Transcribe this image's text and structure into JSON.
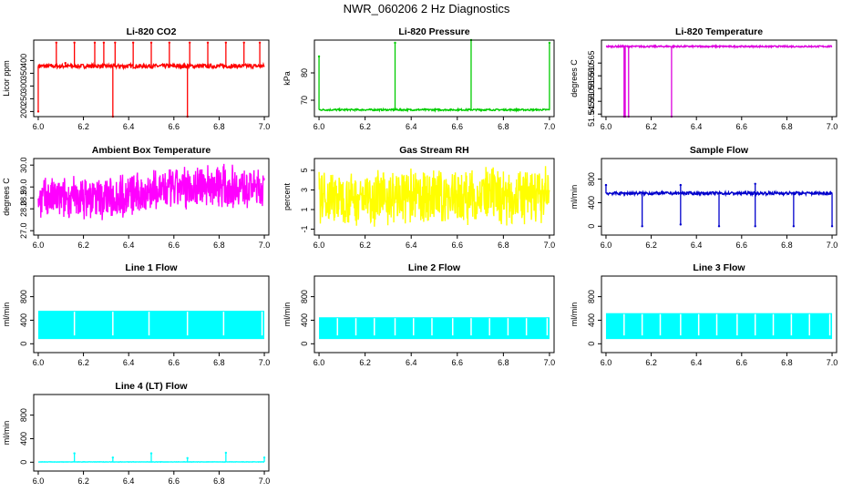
{
  "title": "NWR_060206  2 Hz Diagnostics",
  "chart_data": [
    {
      "id": "co2",
      "type": "line",
      "title": "Li-820 CO2",
      "ylabel": "Licor ppm",
      "color": "#ff0000",
      "xlim": [
        5.98,
        7.02
      ],
      "ylim": [
        180,
        480
      ],
      "xticks": [
        6.0,
        6.2,
        6.4,
        6.6,
        6.8,
        7.0
      ],
      "xtick_labels": [
        "6.0",
        "6.2",
        "6.4",
        "6.6",
        "6.8",
        "7.0"
      ],
      "yticks": [
        200,
        250,
        300,
        350,
        400
      ],
      "ytick_labels": [
        "200",
        "250",
        "300",
        "350",
        "400"
      ],
      "baseline": 378,
      "noise": 8,
      "spikes": [
        {
          "x": 6.0,
          "y": 200
        },
        {
          "x": 6.08,
          "y": 470
        },
        {
          "x": 6.12,
          "y": 390
        },
        {
          "x": 6.16,
          "y": 470
        },
        {
          "x": 6.25,
          "y": 470
        },
        {
          "x": 6.29,
          "y": 470
        },
        {
          "x": 6.33,
          "y": 180
        },
        {
          "x": 6.34,
          "y": 470
        },
        {
          "x": 6.42,
          "y": 470
        },
        {
          "x": 6.5,
          "y": 470
        },
        {
          "x": 6.58,
          "y": 470
        },
        {
          "x": 6.66,
          "y": 180
        },
        {
          "x": 6.67,
          "y": 470
        },
        {
          "x": 6.75,
          "y": 470
        },
        {
          "x": 6.83,
          "y": 470
        },
        {
          "x": 6.91,
          "y": 470
        },
        {
          "x": 6.98,
          "y": 470
        }
      ]
    },
    {
      "id": "pressure",
      "type": "line",
      "title": "Li-820 Pressure",
      "ylabel": "kPa",
      "color": "#00cc00",
      "xlim": [
        5.98,
        7.02
      ],
      "ylim": [
        64,
        92
      ],
      "xticks": [
        6.0,
        6.2,
        6.4,
        6.6,
        6.8,
        7.0
      ],
      "xtick_labels": [
        "6.0",
        "6.2",
        "6.4",
        "6.6",
        "6.8",
        "7.0"
      ],
      "yticks": [
        70,
        80
      ],
      "ytick_labels": [
        "70",
        "80"
      ],
      "baseline": 66.5,
      "noise": 0.3,
      "spikes": [
        {
          "x": 6.0,
          "y": 86
        },
        {
          "x": 6.33,
          "y": 91
        },
        {
          "x": 6.66,
          "y": 92
        },
        {
          "x": 7.0,
          "y": 91
        }
      ]
    },
    {
      "id": "temperature",
      "type": "line",
      "title": "Li-820 Temperature",
      "ylabel": "degrees C",
      "color": "#dd00dd",
      "xlim": [
        5.98,
        7.02
      ],
      "ylim": [
        51.544,
        51.574
      ],
      "xticks": [
        6.0,
        6.2,
        6.4,
        6.6,
        6.8,
        7.0
      ],
      "xtick_labels": [
        "6.0",
        "6.2",
        "6.4",
        "6.6",
        "6.8",
        "7.0"
      ],
      "yticks": [
        51.545,
        51.55,
        51.555,
        51.56,
        51.565
      ],
      "ytick_labels": [
        "51.545",
        "51.550",
        "51.555",
        "51.560",
        "51.565"
      ],
      "baseline": 51.5715,
      "noise": 0.0003,
      "spikes": [
        {
          "x": 6.08,
          "y": 51.544
        },
        {
          "x": 6.085,
          "y": 51.544
        },
        {
          "x": 6.1,
          "y": 51.544
        },
        {
          "x": 6.29,
          "y": 51.544
        }
      ]
    },
    {
      "id": "ambient",
      "type": "line",
      "title": "Ambient Box Temperature",
      "ylabel": "degrees C",
      "color": "#ff00ff",
      "xlim": [
        5.98,
        7.02
      ],
      "ylim": [
        26.8,
        30.3
      ],
      "xticks": [
        6.0,
        6.2,
        6.4,
        6.6,
        6.8,
        7.0
      ],
      "xtick_labels": [
        "6.0",
        "6.2",
        "6.4",
        "6.6",
        "6.8",
        "7.0"
      ],
      "yticks": [
        27.0,
        28.0,
        28.5,
        29.0,
        30.0
      ],
      "ytick_labels": [
        "27.0",
        "28.0",
        "28.5",
        "29.0",
        "30.0"
      ],
      "band_low": [
        [
          6.0,
          27.5
        ],
        [
          6.3,
          27.4
        ],
        [
          6.6,
          27.8
        ],
        [
          6.8,
          28.0
        ],
        [
          7.0,
          28.0
        ]
      ],
      "band_high": [
        [
          6.0,
          29.5
        ],
        [
          6.3,
          29.6
        ],
        [
          6.6,
          30.0
        ],
        [
          6.8,
          30.2
        ],
        [
          7.0,
          29.8
        ]
      ]
    },
    {
      "id": "rh",
      "type": "line",
      "title": "Gas Stream RH",
      "ylabel": "percent",
      "color": "#ffff00",
      "xlim": [
        5.98,
        7.02
      ],
      "ylim": [
        -1.6,
        6.2
      ],
      "xticks": [
        6.0,
        6.2,
        6.4,
        6.6,
        6.8,
        7.0
      ],
      "xtick_labels": [
        "6.0",
        "6.2",
        "6.4",
        "6.6",
        "6.8",
        "7.0"
      ],
      "yticks": [
        -1,
        1,
        3,
        5
      ],
      "ytick_labels": [
        "-1",
        "1",
        "3",
        "5"
      ],
      "band_low": [
        [
          6.0,
          -0.8
        ],
        [
          7.0,
          -0.8
        ]
      ],
      "band_high": [
        [
          6.0,
          5.2
        ],
        [
          7.0,
          5.5
        ]
      ]
    },
    {
      "id": "sample",
      "type": "line",
      "title": "Sample Flow",
      "ylabel": "ml/min",
      "color": "#0000cc",
      "xlim": [
        5.98,
        7.02
      ],
      "ylim": [
        -150,
        1150
      ],
      "xticks": [
        6.0,
        6.2,
        6.4,
        6.6,
        6.8,
        7.0
      ],
      "xtick_labels": [
        "6.0",
        "6.2",
        "6.4",
        "6.6",
        "6.8",
        "7.0"
      ],
      "yticks": [
        0,
        400,
        800
      ],
      "ytick_labels": [
        "0",
        "400",
        "800"
      ],
      "baseline": 560,
      "noise": 25,
      "spikes": [
        {
          "x": 6.0,
          "y": 700
        },
        {
          "x": 6.16,
          "y": 0
        },
        {
          "x": 6.33,
          "y": 30
        },
        {
          "x": 6.33,
          "y": 700
        },
        {
          "x": 6.5,
          "y": 0
        },
        {
          "x": 6.66,
          "y": 0
        },
        {
          "x": 6.66,
          "y": 720
        },
        {
          "x": 6.83,
          "y": 0
        },
        {
          "x": 7.0,
          "y": 0
        }
      ]
    },
    {
      "id": "line1",
      "type": "line",
      "title": "Line 1 Flow",
      "ylabel": "ml/min",
      "color": "#00ffff",
      "xlim": [
        5.98,
        7.02
      ],
      "ylim": [
        -150,
        1150
      ],
      "xticks": [
        6.0,
        6.2,
        6.4,
        6.6,
        6.8,
        7.0
      ],
      "xtick_labels": [
        "6.0",
        "6.2",
        "6.4",
        "6.6",
        "6.8",
        "7.0"
      ],
      "yticks": [
        0,
        400,
        800
      ],
      "ytick_labels": [
        "0",
        "400",
        "800"
      ],
      "flow_low": 80,
      "flow_high": 560,
      "gaps": [
        6.16,
        6.33,
        6.49,
        6.66,
        6.82,
        6.99
      ]
    },
    {
      "id": "line2",
      "type": "line",
      "title": "Line 2 Flow",
      "ylabel": "ml/min",
      "color": "#00ffff",
      "xlim": [
        5.98,
        7.02
      ],
      "ylim": [
        -150,
        1150
      ],
      "xticks": [
        6.0,
        6.2,
        6.4,
        6.6,
        6.8,
        7.0
      ],
      "xtick_labels": [
        "6.0",
        "6.2",
        "6.4",
        "6.6",
        "6.8",
        "7.0"
      ],
      "yticks": [
        0,
        400,
        800
      ],
      "ytick_labels": [
        "0",
        "400",
        "800"
      ],
      "flow_low": 80,
      "flow_high": 450,
      "gaps": [
        6.08,
        6.16,
        6.24,
        6.33,
        6.41,
        6.49,
        6.58,
        6.66,
        6.74,
        6.82,
        6.9,
        6.99
      ]
    },
    {
      "id": "line3",
      "type": "line",
      "title": "Line 3 Flow",
      "ylabel": "ml/min",
      "color": "#00ffff",
      "xlim": [
        5.98,
        7.02
      ],
      "ylim": [
        -150,
        1150
      ],
      "xticks": [
        6.0,
        6.2,
        6.4,
        6.6,
        6.8,
        7.0
      ],
      "xtick_labels": [
        "6.0",
        "6.2",
        "6.4",
        "6.6",
        "6.8",
        "7.0"
      ],
      "yticks": [
        0,
        400,
        800
      ],
      "ytick_labels": [
        "0",
        "400",
        "800"
      ],
      "flow_low": 80,
      "flow_high": 520,
      "gaps": [
        6.08,
        6.16,
        6.24,
        6.33,
        6.41,
        6.49,
        6.58,
        6.66,
        6.74,
        6.82,
        6.9,
        6.99
      ]
    },
    {
      "id": "line4",
      "type": "line",
      "title": "Line 4 (LT) Flow",
      "ylabel": "ml/min",
      "color": "#00ffff",
      "xlim": [
        5.98,
        7.02
      ],
      "ylim": [
        -150,
        1150
      ],
      "xticks": [
        6.0,
        6.2,
        6.4,
        6.6,
        6.8,
        7.0
      ],
      "xtick_labels": [
        "6.0",
        "6.2",
        "6.4",
        "6.6",
        "6.8",
        "7.0"
      ],
      "yticks": [
        0,
        400,
        800
      ],
      "ytick_labels": [
        "0",
        "400",
        "800"
      ],
      "baseline": 5,
      "noise": 3,
      "spikes": [
        {
          "x": 6.16,
          "y": 150
        },
        {
          "x": 6.33,
          "y": 80
        },
        {
          "x": 6.5,
          "y": 150
        },
        {
          "x": 6.66,
          "y": 70
        },
        {
          "x": 6.83,
          "y": 160
        },
        {
          "x": 7.0,
          "y": 80
        }
      ]
    }
  ]
}
